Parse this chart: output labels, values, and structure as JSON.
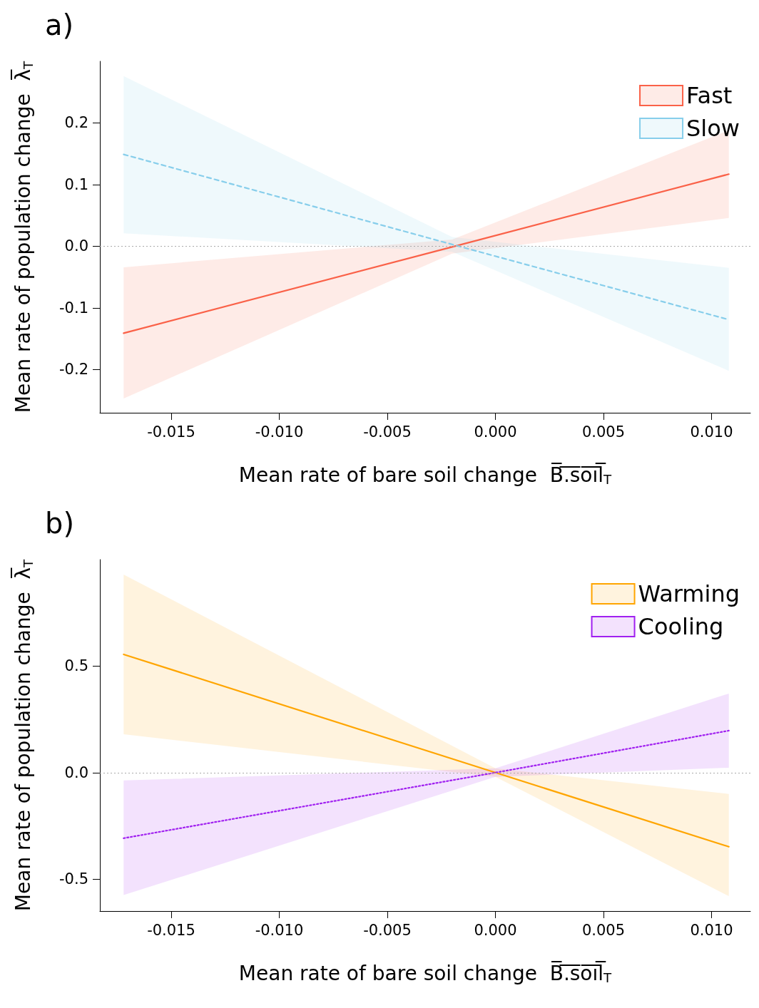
{
  "chart_data": [
    {
      "type": "line",
      "title": "a)",
      "xlabel": "Mean rate of bare soil change  B̅.̅s̅o̅i̅l̅$_{T}$",
      "ylabel": "Mean rate of population change  λ̅$_{T}$",
      "xlim": [
        -0.0183,
        0.0118
      ],
      "xticks": [
        -0.015,
        {
          "value": -0.01,
          "label": "-0.010"
        },
        -0.005,
        {
          "value": 0,
          "label": "0.000"
        },
        0.005,
        {
          "value": 0.01,
          "label": "0.010"
        }
      ],
      "ylim": [
        -0.27,
        0.3
      ],
      "yticks": [
        -0.2,
        -0.1,
        {
          "value": 0,
          "label": "0.0"
        },
        0.1,
        0.2
      ],
      "ref_lines": [
        {
          "axis": "y",
          "value": 0,
          "label": null,
          "color": "#aaaaaa",
          "line_style": "dotted"
        }
      ],
      "legend": "top right",
      "grid": false,
      "series": [
        {
          "name": "Fast",
          "color": "#fa6148",
          "line_style": "solid",
          "x": [
            -0.0172,
            -0.002,
            0.0108
          ],
          "values": [
            -0.141,
            -0.001,
            0.117
          ],
          "lower": [
            -0.247,
            -0.012,
            0.046
          ],
          "upper": [
            -0.034,
            0.011,
            0.188
          ]
        },
        {
          "name": "Slow",
          "color": "#87ceeb",
          "line_style": "dashed",
          "x": [
            -0.0172,
            -0.002,
            0.0108
          ],
          "values": [
            0.149,
            0.003,
            -0.119
          ],
          "lower": [
            0.021,
            -0.009,
            -0.202
          ],
          "upper": [
            0.276,
            0.015,
            -0.035
          ]
        }
      ]
    },
    {
      "type": "line",
      "title": "b)",
      "xlabel": "Mean rate of bare soil change  B̅.̅s̅o̅i̅l̅$_{T}$",
      "ylabel": "Mean rate of population change  λ̅$_{T}$",
      "xlim": [
        -0.0183,
        0.0118
      ],
      "xticks": [
        -0.015,
        {
          "value": -0.01,
          "label": "-0.010"
        },
        -0.005,
        {
          "value": 0,
          "label": "0.000"
        },
        0.005,
        {
          "value": 0.01,
          "label": "0.010"
        }
      ],
      "ylim": [
        -0.65,
        1.0
      ],
      "yticks": [
        -0.5,
        {
          "value": 0,
          "label": "0.0"
        },
        0.5
      ],
      "ref_lines": [
        {
          "axis": "y",
          "value": 0,
          "label": null,
          "color": "#aaaaaa",
          "line_style": "dotted"
        }
      ],
      "legend": "top right",
      "grid": false,
      "series": [
        {
          "name": "Warming",
          "color": "#ffa500",
          "line_style": "solid",
          "x": [
            -0.0172,
            0,
            0.0108
          ],
          "values": [
            0.555,
            0.0,
            -0.348
          ],
          "lower": [
            0.18,
            -0.02,
            -0.58
          ],
          "upper": [
            0.93,
            0.02,
            -0.1
          ]
        },
        {
          "name": "Cooling",
          "color": "#a020f0",
          "line_style": "dotted",
          "x": [
            -0.0172,
            0,
            0.0108
          ],
          "values": [
            -0.308,
            0.0,
            0.197
          ],
          "lower": [
            -0.575,
            -0.02,
            0.023
          ],
          "upper": [
            -0.037,
            0.02,
            0.371
          ]
        }
      ]
    }
  ]
}
